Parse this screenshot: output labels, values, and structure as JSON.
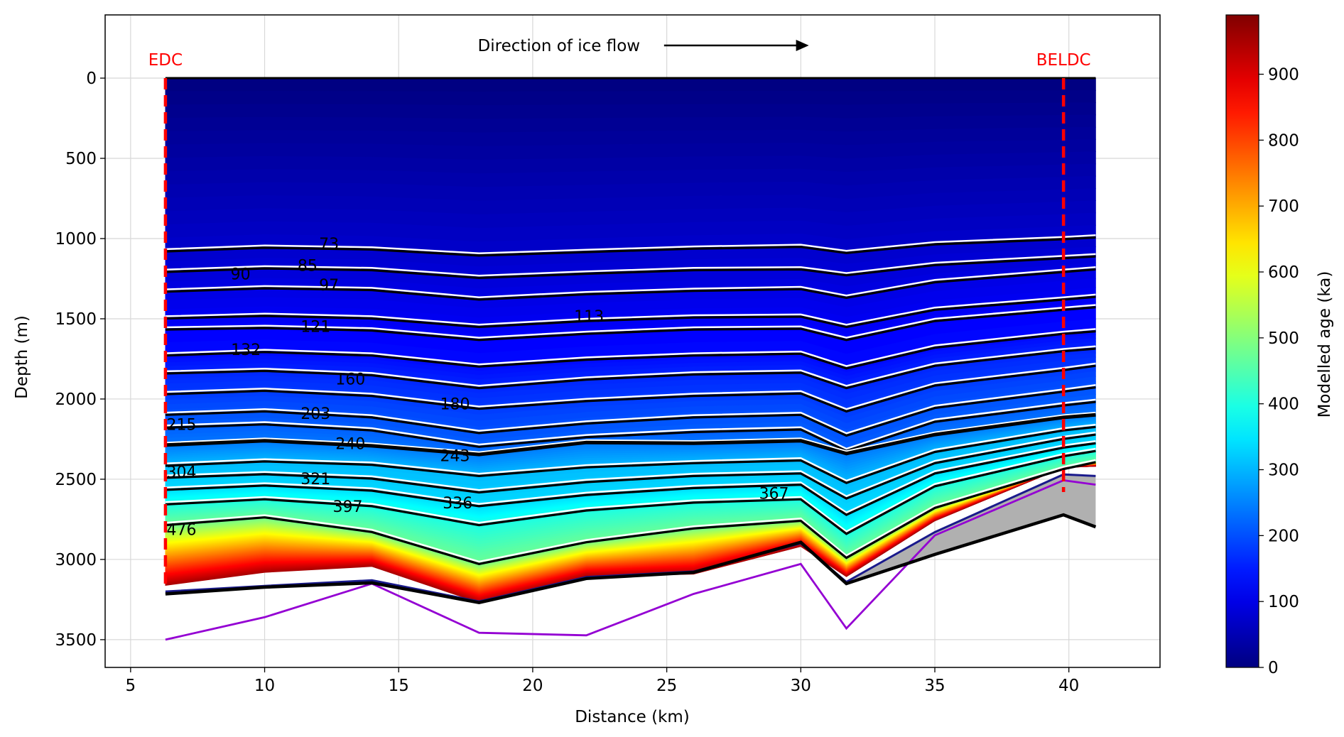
{
  "chart_data": {
    "type": "heatmap",
    "title": "",
    "xlabel": "Distance (km)",
    "ylabel": "Depth (m)",
    "xlim": [
      4.05,
      43.4
    ],
    "ylim": [
      3673,
      -394
    ],
    "y_inverted": true,
    "grid": true,
    "xticks": [
      5,
      10,
      15,
      20,
      25,
      30,
      35,
      40
    ],
    "yticks": [
      0,
      500,
      1000,
      1500,
      2000,
      2500,
      3000,
      3500
    ],
    "x_km": [
      6.3,
      10,
      14,
      18,
      22,
      26,
      30,
      31.7,
      35,
      39.8,
      41
    ],
    "surface_depth": 0,
    "isochrones": [
      {
        "age": 73,
        "depths": [
          1080,
          1057,
          1068,
          1106,
          1084,
          1063,
          1052,
          1090,
          1036,
          1004,
          993
        ]
      },
      {
        "age": 85,
        "depths": [
          1208,
          1186,
          1197,
          1245,
          1219,
          1197,
          1192,
          1229,
          1165,
          1122,
          1111
        ]
      },
      {
        "age": 97,
        "depths": [
          1331,
          1310,
          1321,
          1380,
          1347,
          1326,
          1315,
          1369,
          1272,
          1208,
          1192
        ]
      },
      {
        "age": 113,
        "depths": [
          1498,
          1482,
          1498,
          1551,
          1514,
          1492,
          1487,
          1551,
          1444,
          1380,
          1363
        ]
      },
      {
        "age": 121,
        "depths": [
          1567,
          1557,
          1573,
          1632,
          1594,
          1567,
          1562,
          1632,
          1514,
          1444,
          1428
        ]
      },
      {
        "age": 132,
        "depths": [
          1729,
          1707,
          1729,
          1798,
          1755,
          1729,
          1718,
          1809,
          1680,
          1594,
          1578
        ]
      },
      {
        "age": 160,
        "depths": [
          1841,
          1825,
          1852,
          1932,
          1879,
          1847,
          1836,
          1932,
          1793,
          1702,
          1686
        ]
      },
      {
        "age": 180,
        "depths": [
          1970,
          1949,
          1981,
          2061,
          2013,
          1981,
          1965,
          2077,
          1916,
          1820,
          1793
        ]
      },
      {
        "age": 203,
        "depths": [
          2099,
          2077,
          2115,
          2212,
          2153,
          2115,
          2099,
          2228,
          2056,
          1954,
          1927
        ]
      },
      {
        "age": 215,
        "depths": [
          2179,
          2158,
          2196,
          2298,
          2238,
          2206,
          2190,
          2324,
          2142,
          2040,
          2018
        ]
      },
      {
        "age": 240,
        "depths": [
          2287,
          2260,
          2292,
          2346,
          2271,
          2276,
          2260,
          2340,
          2222,
          2115,
          2099
        ],
        "thick": true
      },
      {
        "age": 304,
        "depths": [
          2416,
          2389,
          2410,
          2480,
          2426,
          2400,
          2383,
          2523,
          2330,
          2196,
          2174
        ]
      },
      {
        "age": 321,
        "depths": [
          2491,
          2469,
          2496,
          2582,
          2518,
          2480,
          2464,
          2620,
          2400,
          2249,
          2222
        ]
      },
      {
        "age": 336,
        "depths": [
          2566,
          2539,
          2571,
          2668,
          2598,
          2555,
          2534,
          2722,
          2464,
          2303,
          2276
        ]
      },
      {
        "age": 397,
        "depths": [
          2657,
          2625,
          2668,
          2786,
          2695,
          2646,
          2625,
          2840,
          2544,
          2357,
          2324
        ]
      },
      {
        "age": 476,
        "depths": [
          2786,
          2738,
          2829,
          3028,
          2893,
          2807,
          2759,
          2990,
          2679,
          2437,
          2394
        ]
      }
    ],
    "modelled_base": {
      "age": 950,
      "depths": [
        3162,
        3081,
        3044,
        3269,
        3108,
        3092,
        2920,
        3108,
        2760,
        2427,
        2420
      ]
    },
    "ice_model_base_line": [
      3200,
      3165,
      3130,
      3262,
      3110,
      3075,
      2900,
      3140,
      2830,
      2470,
      2480
    ],
    "bed": [
      3215,
      3173,
      3146,
      3269,
      3119,
      3081,
      2893,
      3151,
      2969,
      2722,
      2797
    ],
    "purple_line": [
      3500,
      3360,
      3151,
      3457,
      3473,
      3215,
      3028,
      3430,
      2850,
      2507,
      2534
    ],
    "contour_labels": [
      {
        "text": "73",
        "x_km": 12.4,
        "depth": 1031
      },
      {
        "text": "85",
        "x_km": 11.6,
        "depth": 1165
      },
      {
        "text": "90",
        "x_km": 9.1,
        "depth": 1219
      },
      {
        "text": "97",
        "x_km": 12.4,
        "depth": 1288
      },
      {
        "text": "113",
        "x_km": 22.1,
        "depth": 1482
      },
      {
        "text": "121",
        "x_km": 11.9,
        "depth": 1546
      },
      {
        "text": "132",
        "x_km": 9.3,
        "depth": 1691
      },
      {
        "text": "160",
        "x_km": 13.2,
        "depth": 1873
      },
      {
        "text": "180",
        "x_km": 17.1,
        "depth": 2029
      },
      {
        "text": "203",
        "x_km": 11.9,
        "depth": 2088
      },
      {
        "text": "215",
        "x_km": 6.9,
        "depth": 2158
      },
      {
        "text": "240",
        "x_km": 13.2,
        "depth": 2276
      },
      {
        "text": "243",
        "x_km": 17.1,
        "depth": 2351
      },
      {
        "text": "304",
        "x_km": 6.9,
        "depth": 2453
      },
      {
        "text": "321",
        "x_km": 11.9,
        "depth": 2496
      },
      {
        "text": "336",
        "x_km": 17.2,
        "depth": 2646
      },
      {
        "text": "367",
        "x_km": 29.0,
        "depth": 2587
      },
      {
        "text": "397",
        "x_km": 13.1,
        "depth": 2668
      },
      {
        "text": "476",
        "x_km": 6.9,
        "depth": 2813
      }
    ],
    "annotation": {
      "text": "Direction of ice flow",
      "arrow_from_km": 24.9,
      "arrow_to_km": 30.3
    },
    "sites": [
      {
        "name": "EDC",
        "x_km": 6.3,
        "bottom_depth": 3180
      },
      {
        "name": "BELDC",
        "x_km": 39.8,
        "bottom_depth": 2580
      }
    ],
    "colorbar": {
      "label": "Modelled age (ka)",
      "colormap": "jet",
      "range": [
        0,
        990
      ],
      "ticks": [
        0,
        100,
        200,
        300,
        400,
        500,
        600,
        700,
        800,
        900
      ]
    },
    "colors": {
      "site_marker": "#ff0000",
      "purple_line": "#9400d3",
      "bed": "#000000",
      "basal_unit": "#b0b0b0",
      "ice_base_line": "#1a1a8c",
      "grid": "#d8d8d8"
    }
  }
}
